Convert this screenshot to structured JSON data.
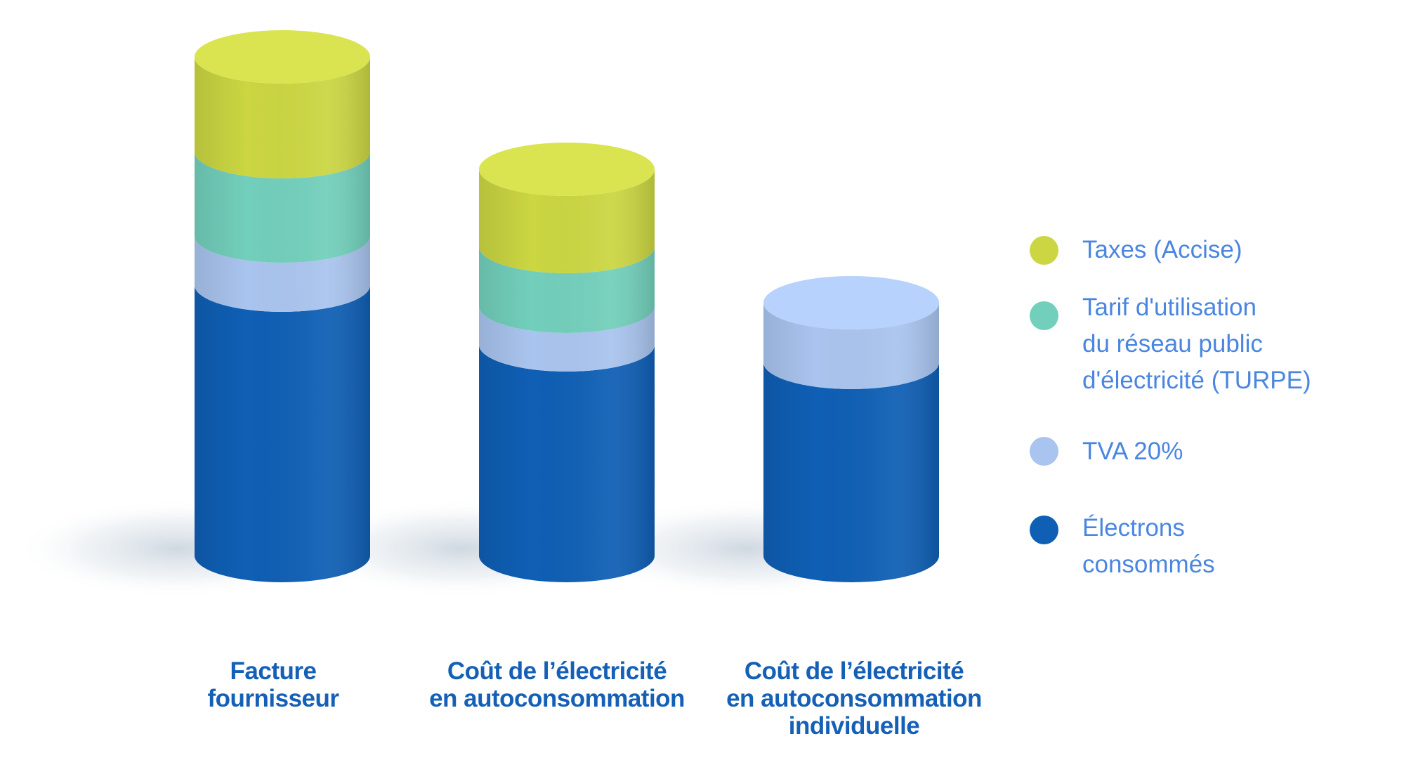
{
  "chart_data": {
    "type": "bar",
    "stacked": true,
    "style": "3d-cylinder",
    "categories": [
      "Facture\nfournisseur",
      "Coût de l’électricité\nen autoconsommation",
      "Coût de l’électricité\nen autoconsommation\nindividuelle"
    ],
    "series": [
      {
        "name": "Électrons\nconsommés",
        "color": "#0f5fb5",
        "values": [
          385,
          300,
          275
        ]
      },
      {
        "name": "TVA 20%",
        "color": "#a9c4ee",
        "values": [
          70,
          55,
          85
        ]
      },
      {
        "name": "Tarif d'utilisation\ndu réseau public\nd'électricité (TURPE)",
        "color": "#72cfbb",
        "values": [
          120,
          85,
          0
        ]
      },
      {
        "name": "Taxes (Accise)",
        "color": "#cbd642",
        "values": [
          135,
          110,
          0
        ]
      }
    ],
    "legend_order": [
      3,
      2,
      1,
      0
    ],
    "legend_position": "right",
    "title": "",
    "xlabel": "",
    "ylabel": "",
    "ylim": [
      0,
      760
    ],
    "grid": false
  },
  "colors": {
    "label_dark_blue": "#1560b7",
    "legend_text_blue": "#4a86e0"
  }
}
